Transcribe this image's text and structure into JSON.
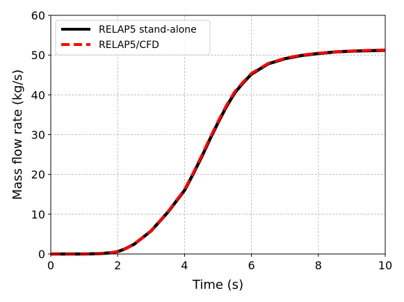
{
  "chart_data": {
    "type": "line",
    "xlabel": "Time (s)",
    "ylabel": "Mass flow rate (kg/s)",
    "xlim": [
      0,
      10
    ],
    "ylim": [
      0,
      60
    ],
    "xticks": [
      0,
      2,
      4,
      6,
      8,
      10
    ],
    "yticks": [
      0,
      10,
      20,
      30,
      40,
      50,
      60
    ],
    "grid": true,
    "legend_position": "top-left",
    "series": [
      {
        "name": "RELAP5 stand-alone",
        "color": "#000000",
        "style": "solid",
        "x": [
          0,
          1.0,
          1.5,
          1.8,
          2.0,
          2.2,
          2.5,
          3.0,
          3.5,
          4.0,
          4.25,
          4.5,
          4.75,
          5.0,
          5.25,
          5.5,
          5.75,
          6.0,
          6.5,
          7.0,
          7.5,
          8.0,
          8.5,
          9.0,
          9.5,
          10.0
        ],
        "y": [
          0,
          0,
          0.1,
          0.3,
          0.6,
          1.2,
          2.5,
          5.8,
          10.5,
          16.0,
          20.0,
          24.2,
          28.7,
          33.0,
          37.0,
          40.5,
          43.0,
          45.2,
          47.8,
          49.1,
          49.9,
          50.4,
          50.8,
          51.0,
          51.1,
          51.2
        ]
      },
      {
        "name": "RELAP5/CFD",
        "color": "#ff0000",
        "style": "dashed",
        "x": [
          0,
          1.0,
          1.5,
          1.8,
          2.0,
          2.2,
          2.5,
          3.0,
          3.5,
          4.0,
          4.25,
          4.5,
          4.75,
          5.0,
          5.25,
          5.5,
          5.75,
          6.0,
          6.5,
          7.0,
          7.5,
          8.0,
          8.5,
          9.0,
          9.5,
          10.0
        ],
        "y": [
          0,
          0,
          0.1,
          0.3,
          0.6,
          1.2,
          2.5,
          5.8,
          10.6,
          16.2,
          20.2,
          24.5,
          29.0,
          33.3,
          37.3,
          40.8,
          43.2,
          45.4,
          47.9,
          49.2,
          50.0,
          50.5,
          50.8,
          51.0,
          51.2,
          51.3
        ]
      }
    ]
  }
}
